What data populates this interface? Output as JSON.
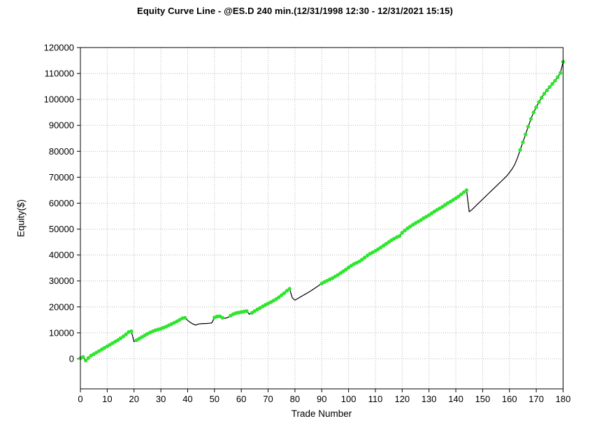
{
  "title": "Equity Curve Line - @ES.D 240 min.(12/31/1998 12:30 - 12/31/2021 15:15)",
  "chart_data": {
    "type": "line",
    "title": "Equity Curve Line - @ES.D 240 min.(12/31/1998 12:30 - 12/31/2021 15:15)",
    "xlabel": "Trade Number",
    "ylabel": "Equity($)",
    "xlim": [
      0,
      180
    ],
    "ylim": [
      -11600,
      120000
    ],
    "x_ticks": [
      0,
      10,
      20,
      30,
      40,
      50,
      60,
      70,
      80,
      90,
      100,
      110,
      120,
      130,
      140,
      150,
      160,
      170,
      180
    ],
    "y_ticks": [
      0,
      10000,
      20000,
      30000,
      40000,
      50000,
      60000,
      70000,
      80000,
      90000,
      100000,
      110000,
      120000
    ],
    "grid": true,
    "legend": "none",
    "line_color": "#000000",
    "marker_color": "#2ce62c",
    "x_note": "x value equals index (trade number 0..180)",
    "values": [
      200,
      700,
      -700,
      300,
      1200,
      1800,
      2400,
      3000,
      3600,
      4200,
      4800,
      5400,
      6000,
      6600,
      7200,
      7900,
      8600,
      9400,
      10300,
      10600,
      6600,
      7200,
      7800,
      8400,
      9000,
      9600,
      10100,
      10600,
      11000,
      11300,
      11600,
      12000,
      12400,
      12900,
      13400,
      13900,
      14400,
      15000,
      15600,
      15800,
      14800,
      14000,
      13400,
      13000,
      13400,
      13500,
      13600,
      13600,
      13700,
      13800,
      15900,
      16300,
      16400,
      15800,
      15600,
      15900,
      16600,
      17200,
      17600,
      17800,
      18000,
      18200,
      18400,
      17200,
      17700,
      18400,
      19000,
      19600,
      20200,
      20800,
      21300,
      21800,
      22400,
      23000,
      23700,
      24500,
      25300,
      26200,
      27000,
      23500,
      22600,
      23200,
      23800,
      24400,
      25000,
      25600,
      26200,
      26900,
      27600,
      28300,
      29000,
      29600,
      30100,
      30600,
      31100,
      31700,
      32300,
      33000,
      33700,
      34400,
      35200,
      35900,
      36500,
      37000,
      37500,
      38200,
      39000,
      39800,
      40500,
      41000,
      41600,
      42200,
      42900,
      43600,
      44300,
      45000,
      45700,
      46300,
      46900,
      47300,
      48600,
      49500,
      50300,
      51000,
      51700,
      52300,
      52900,
      53500,
      54200,
      54800,
      55400,
      56100,
      56800,
      57400,
      58000,
      58600,
      59300,
      60000,
      60600,
      61200,
      61900,
      62600,
      63400,
      64200,
      65000,
      56700,
      57500,
      58500,
      59500,
      60500,
      61500,
      62500,
      63500,
      64500,
      65500,
      66500,
      67500,
      68500,
      69500,
      70500,
      71800,
      73200,
      75000,
      77500,
      80500,
      83500,
      86500,
      89500,
      92500,
      95000,
      97000,
      99000,
      100700,
      102200,
      103500,
      104800,
      106000,
      107200,
      108600,
      110200,
      114500
    ],
    "marker_segments": [
      [
        0,
        19
      ],
      [
        21,
        39
      ],
      [
        50,
        53
      ],
      [
        56,
        62
      ],
      [
        64,
        78
      ],
      [
        90,
        144
      ],
      [
        164,
        180
      ]
    ]
  }
}
